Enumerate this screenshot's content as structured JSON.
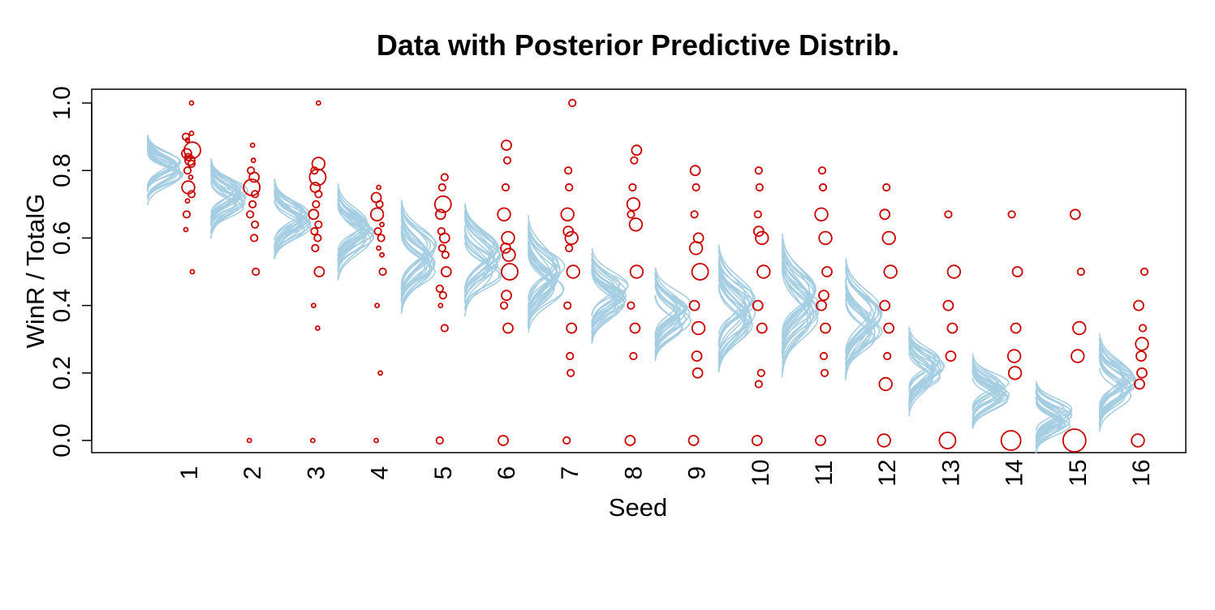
{
  "chart_data": {
    "type": "scatter",
    "title": "Data with Posterior Predictive Distrib.",
    "xlabel": "Seed",
    "ylabel": "WinR / TotalG",
    "ylim": [
      0,
      1
    ],
    "yticks": [
      "0.0",
      "0.2",
      "0.4",
      "0.6",
      "0.8",
      "1.0"
    ],
    "categories": [
      "1",
      "2",
      "3",
      "4",
      "5",
      "6",
      "7",
      "8",
      "9",
      "10",
      "11",
      "12",
      "13",
      "14",
      "15",
      "16"
    ],
    "posterior_predictive": {
      "color": "#a6cee3",
      "curves_per_seed": 20,
      "center": [
        0.8,
        0.72,
        0.66,
        0.61,
        0.54,
        0.53,
        0.49,
        0.43,
        0.37,
        0.38,
        0.4,
        0.35,
        0.21,
        0.15,
        0.07,
        0.16
      ],
      "spread": [
        0.025,
        0.028,
        0.032,
        0.035,
        0.04,
        0.04,
        0.042,
        0.032,
        0.035,
        0.045,
        0.05,
        0.045,
        0.032,
        0.028,
        0.025,
        0.035
      ]
    },
    "observed": {
      "color": "#cc0000",
      "series": [
        {
          "seed": "1",
          "points": [
            [
              1.0,
              1
            ],
            [
              0.91,
              1
            ],
            [
              0.9,
              2
            ],
            [
              0.89,
              1
            ],
            [
              0.86,
              5
            ],
            [
              0.85,
              3
            ],
            [
              0.84,
              2
            ],
            [
              0.83,
              3
            ],
            [
              0.82,
              2
            ],
            [
              0.8,
              2
            ],
            [
              0.78,
              1
            ],
            [
              0.75,
              4
            ],
            [
              0.73,
              2
            ],
            [
              0.71,
              1
            ],
            [
              0.67,
              2
            ],
            [
              0.625,
              1
            ],
            [
              0.5,
              1
            ]
          ]
        },
        {
          "seed": "2",
          "points": [
            [
              0.875,
              1
            ],
            [
              0.83,
              1
            ],
            [
              0.8,
              2
            ],
            [
              0.78,
              3
            ],
            [
              0.75,
              5
            ],
            [
              0.73,
              2
            ],
            [
              0.7,
              2
            ],
            [
              0.67,
              2
            ],
            [
              0.64,
              2
            ],
            [
              0.6,
              2
            ],
            [
              0.5,
              2
            ],
            [
              0.0,
              1
            ]
          ]
        },
        {
          "seed": "3",
          "points": [
            [
              1.0,
              1
            ],
            [
              0.82,
              4
            ],
            [
              0.8,
              2
            ],
            [
              0.78,
              5
            ],
            [
              0.75,
              3
            ],
            [
              0.73,
              2
            ],
            [
              0.7,
              2
            ],
            [
              0.67,
              3
            ],
            [
              0.64,
              2
            ],
            [
              0.62,
              2
            ],
            [
              0.6,
              2
            ],
            [
              0.57,
              2
            ],
            [
              0.5,
              3
            ],
            [
              0.4,
              1
            ],
            [
              0.333,
              1
            ],
            [
              0.0,
              1
            ]
          ]
        },
        {
          "seed": "4",
          "points": [
            [
              0.75,
              1
            ],
            [
              0.72,
              3
            ],
            [
              0.7,
              2
            ],
            [
              0.67,
              4
            ],
            [
              0.64,
              1
            ],
            [
              0.62,
              2
            ],
            [
              0.6,
              2
            ],
            [
              0.57,
              1
            ],
            [
              0.55,
              1
            ],
            [
              0.5,
              2
            ],
            [
              0.4,
              1
            ],
            [
              0.2,
              1
            ],
            [
              0.0,
              1
            ]
          ]
        },
        {
          "seed": "5",
          "points": [
            [
              0.78,
              2
            ],
            [
              0.75,
              2
            ],
            [
              0.7,
              5
            ],
            [
              0.67,
              3
            ],
            [
              0.62,
              2
            ],
            [
              0.6,
              3
            ],
            [
              0.57,
              2
            ],
            [
              0.55,
              2
            ],
            [
              0.5,
              3
            ],
            [
              0.45,
              2
            ],
            [
              0.43,
              2
            ],
            [
              0.4,
              1
            ],
            [
              0.333,
              2
            ],
            [
              0.0,
              2
            ]
          ]
        },
        {
          "seed": "6",
          "points": [
            [
              0.875,
              3
            ],
            [
              0.83,
              2
            ],
            [
              0.75,
              2
            ],
            [
              0.67,
              4
            ],
            [
              0.6,
              4
            ],
            [
              0.57,
              3
            ],
            [
              0.55,
              4
            ],
            [
              0.5,
              5
            ],
            [
              0.43,
              3
            ],
            [
              0.4,
              2
            ],
            [
              0.333,
              3
            ],
            [
              0.0,
              3
            ]
          ]
        },
        {
          "seed": "7",
          "points": [
            [
              1.0,
              2
            ],
            [
              0.8,
              2
            ],
            [
              0.75,
              2
            ],
            [
              0.67,
              4
            ],
            [
              0.62,
              3
            ],
            [
              0.6,
              4
            ],
            [
              0.57,
              2
            ],
            [
              0.5,
              4
            ],
            [
              0.4,
              2
            ],
            [
              0.333,
              3
            ],
            [
              0.25,
              2
            ],
            [
              0.2,
              2
            ],
            [
              0.0,
              2
            ]
          ]
        },
        {
          "seed": "8",
          "points": [
            [
              0.86,
              3
            ],
            [
              0.83,
              2
            ],
            [
              0.75,
              2
            ],
            [
              0.7,
              4
            ],
            [
              0.67,
              2
            ],
            [
              0.64,
              4
            ],
            [
              0.5,
              4
            ],
            [
              0.4,
              2
            ],
            [
              0.333,
              3
            ],
            [
              0.25,
              2
            ],
            [
              0.0,
              3
            ]
          ]
        },
        {
          "seed": "9",
          "points": [
            [
              0.8,
              3
            ],
            [
              0.75,
              2
            ],
            [
              0.67,
              2
            ],
            [
              0.6,
              3
            ],
            [
              0.57,
              4
            ],
            [
              0.5,
              5
            ],
            [
              0.4,
              3
            ],
            [
              0.333,
              4
            ],
            [
              0.25,
              3
            ],
            [
              0.2,
              3
            ],
            [
              0.0,
              3
            ]
          ]
        },
        {
          "seed": "10",
          "points": [
            [
              0.8,
              2
            ],
            [
              0.75,
              2
            ],
            [
              0.67,
              2
            ],
            [
              0.62,
              3
            ],
            [
              0.6,
              4
            ],
            [
              0.5,
              4
            ],
            [
              0.4,
              3
            ],
            [
              0.333,
              3
            ],
            [
              0.2,
              2
            ],
            [
              0.167,
              2
            ],
            [
              0.0,
              3
            ]
          ]
        },
        {
          "seed": "11",
          "points": [
            [
              0.8,
              2
            ],
            [
              0.75,
              2
            ],
            [
              0.67,
              4
            ],
            [
              0.6,
              4
            ],
            [
              0.5,
              3
            ],
            [
              0.43,
              3
            ],
            [
              0.4,
              3
            ],
            [
              0.333,
              3
            ],
            [
              0.25,
              2
            ],
            [
              0.2,
              2
            ],
            [
              0.0,
              3
            ]
          ]
        },
        {
          "seed": "12",
          "points": [
            [
              0.75,
              2
            ],
            [
              0.67,
              3
            ],
            [
              0.6,
              4
            ],
            [
              0.5,
              4
            ],
            [
              0.4,
              3
            ],
            [
              0.333,
              3
            ],
            [
              0.25,
              2
            ],
            [
              0.167,
              4
            ],
            [
              0.0,
              4
            ]
          ]
        },
        {
          "seed": "13",
          "points": [
            [
              0.67,
              2
            ],
            [
              0.5,
              4
            ],
            [
              0.4,
              3
            ],
            [
              0.333,
              3
            ],
            [
              0.25,
              3
            ],
            [
              0.0,
              5
            ]
          ]
        },
        {
          "seed": "14",
          "points": [
            [
              0.67,
              2
            ],
            [
              0.5,
              3
            ],
            [
              0.333,
              3
            ],
            [
              0.25,
              4
            ],
            [
              0.2,
              4
            ],
            [
              0.0,
              6
            ]
          ]
        },
        {
          "seed": "15",
          "points": [
            [
              0.67,
              3
            ],
            [
              0.5,
              2
            ],
            [
              0.333,
              4
            ],
            [
              0.25,
              4
            ],
            [
              0.0,
              7
            ]
          ]
        },
        {
          "seed": "16",
          "points": [
            [
              0.5,
              2
            ],
            [
              0.4,
              3
            ],
            [
              0.333,
              2
            ],
            [
              0.286,
              4
            ],
            [
              0.25,
              3
            ],
            [
              0.2,
              3
            ],
            [
              0.167,
              3
            ],
            [
              0.0,
              4
            ]
          ]
        }
      ]
    },
    "grid": false,
    "legend": "none"
  }
}
